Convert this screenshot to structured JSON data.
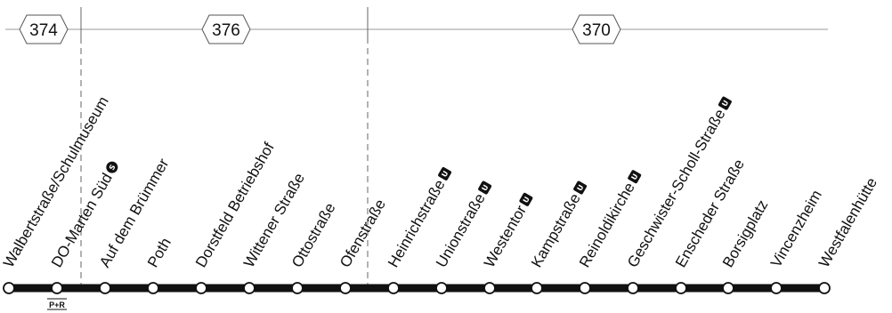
{
  "zones": [
    {
      "number": "374"
    },
    {
      "number": "376"
    },
    {
      "number": "370"
    }
  ],
  "stops": [
    {
      "name": "Walbertstraße/Schulmuseum",
      "badge": ""
    },
    {
      "name": "DO-Marten Süd",
      "badge": "S"
    },
    {
      "name": "Auf dem Brümmer",
      "badge": ""
    },
    {
      "name": "Poth",
      "badge": ""
    },
    {
      "name": "Dorstfeld Betriebshof",
      "badge": ""
    },
    {
      "name": "Wittener Straße",
      "badge": ""
    },
    {
      "name": "Ottostraße",
      "badge": ""
    },
    {
      "name": "Ofenstraße",
      "badge": ""
    },
    {
      "name": "Heinrichstraße",
      "badge": "U"
    },
    {
      "name": "Unionstraße",
      "badge": "U"
    },
    {
      "name": "Westentor",
      "badge": "U"
    },
    {
      "name": "Kampstraße",
      "badge": "U"
    },
    {
      "name": "Reinoldikirche",
      "badge": "U"
    },
    {
      "name": "Geschwister-Scholl-Straße",
      "badge": "U"
    },
    {
      "name": "Enscheder Straße",
      "badge": ""
    },
    {
      "name": "Borsigplatz",
      "badge": ""
    },
    {
      "name": "Vincenzheim",
      "badge": ""
    },
    {
      "name": "Westfalenhütte",
      "badge": ""
    }
  ],
  "park_and_ride": {
    "label": "P+R"
  },
  "colors": {
    "line": "#111111",
    "zone_line": "#999999",
    "divider": "#666666"
  }
}
